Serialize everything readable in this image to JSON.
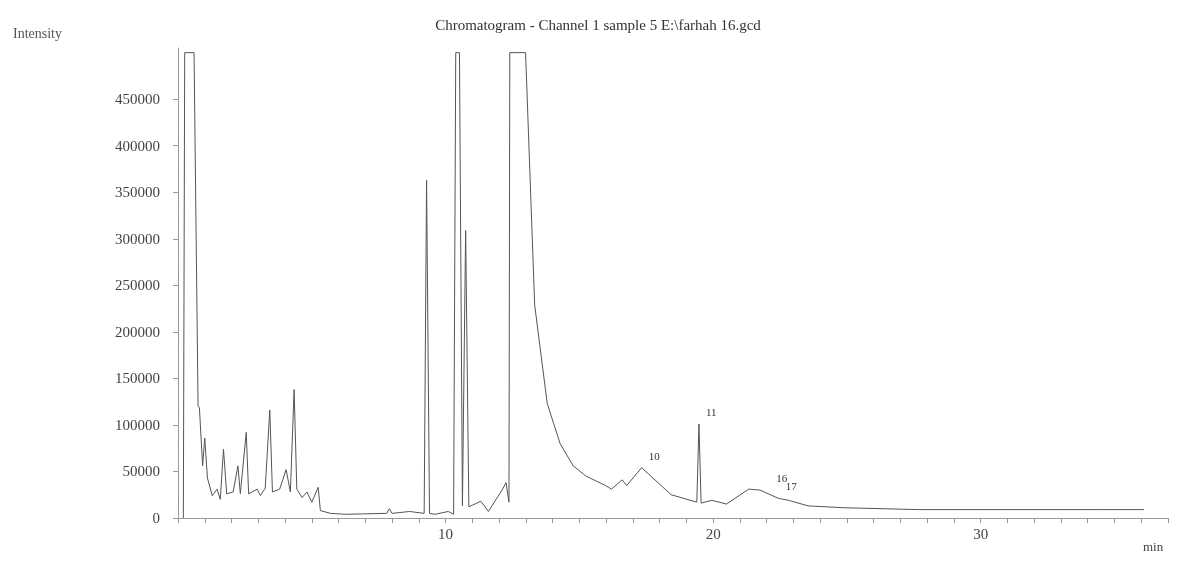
{
  "chart_data": {
    "type": "line",
    "title": "Chromatogram - Channel 1 sample 5 E:\\farhah 16.gcd",
    "xlabel": "min",
    "ylabel": "Intensity",
    "x": [
      0.2,
      0.25,
      0.6,
      0.75,
      0.8,
      0.92,
      1.0,
      1.1,
      1.28,
      1.46,
      1.58,
      1.7,
      1.82,
      2.06,
      2.24,
      2.33,
      2.55,
      2.64,
      2.96,
      3.08,
      3.26,
      3.43,
      3.53,
      3.8,
      4.04,
      4.2,
      4.34,
      4.44,
      4.64,
      4.82,
      5.0,
      5.24,
      5.32,
      5.7,
      6.26,
      7.8,
      7.9,
      8.0,
      8.66,
      9.2,
      9.29,
      9.4,
      9.6,
      10.1,
      10.3,
      10.38,
      10.52,
      10.63,
      10.75,
      10.87,
      11.32,
      11.6,
      12.13,
      12.26,
      12.37,
      12.4,
      12.99,
      13.33,
      13.8,
      14.28,
      14.77,
      15.25,
      15.97,
      16.2,
      16.6,
      16.77,
      17.33,
      18.43,
      19.39,
      19.47,
      19.55,
      19.95,
      20.5,
      21.33,
      21.75,
      22.45,
      22.82,
      23.55,
      24.9,
      27.7,
      34.6,
      36.1
    ],
    "series": [
      {
        "color": "#555555",
        "values": [
          0,
          500000,
          500000,
          120000,
          119000,
          56000,
          86000,
          43000,
          24000,
          31000,
          20000,
          74000,
          26000,
          28000,
          56000,
          26000,
          92000,
          26000,
          31000,
          24000,
          32000,
          116000,
          28000,
          31000,
          52000,
          28000,
          138000,
          31000,
          22000,
          28000,
          17000,
          33000,
          8000,
          5000,
          4000,
          5000,
          10000,
          5000,
          7000,
          5000,
          363000,
          5000,
          4000,
          7000,
          4000,
          500000,
          500000,
          13000,
          309000,
          12000,
          18000,
          7000,
          31000,
          38000,
          17000,
          500000,
          500000,
          229000,
          123000,
          80000,
          56000,
          45000,
          35000,
          31000,
          41000,
          35000,
          54000,
          25000,
          17000,
          101000,
          16000,
          19000,
          15000,
          31000,
          30000,
          21000,
          19000,
          13000,
          11000,
          9000,
          9000,
          9000
        ]
      }
    ],
    "xlim": [
      0,
      37
    ],
    "ylim": [
      0,
      505000
    ],
    "xticks": [
      {
        "value": 0,
        "label": null
      },
      {
        "value": 1,
        "label": null
      },
      {
        "value": 2,
        "label": null
      },
      {
        "value": 3,
        "label": null
      },
      {
        "value": 4,
        "label": null
      },
      {
        "value": 5,
        "label": null
      },
      {
        "value": 6,
        "label": null
      },
      {
        "value": 7,
        "label": null
      },
      {
        "value": 8,
        "label": null
      },
      {
        "value": 9,
        "label": null
      },
      10,
      {
        "value": 11,
        "label": null
      },
      {
        "value": 12,
        "label": null
      },
      {
        "value": 13,
        "label": null
      },
      {
        "value": 14,
        "label": null
      },
      {
        "value": 15,
        "label": null
      },
      {
        "value": 16,
        "label": null
      },
      {
        "value": 17,
        "label": null
      },
      {
        "value": 18,
        "label": null
      },
      {
        "value": 19,
        "label": null
      },
      20,
      {
        "value": 21,
        "label": null
      },
      {
        "value": 22,
        "label": null
      },
      {
        "value": 23,
        "label": null
      },
      {
        "value": 24,
        "label": null
      },
      {
        "value": 25,
        "label": null
      },
      {
        "value": 26,
        "label": null
      },
      {
        "value": 27,
        "label": null
      },
      {
        "value": 28,
        "label": null
      },
      {
        "value": 29,
        "label": null
      },
      30,
      {
        "value": 31,
        "label": null
      },
      {
        "value": 32,
        "label": null
      },
      {
        "value": 33,
        "label": null
      },
      {
        "value": 34,
        "label": null
      },
      {
        "value": 35,
        "label": null
      },
      {
        "value": 36,
        "label": null
      },
      {
        "value": 37,
        "label": null
      }
    ],
    "yticks": [
      0,
      50000,
      100000,
      150000,
      200000,
      250000,
      300000,
      350000,
      400000,
      450000
    ],
    "annotations": [
      {
        "text": "10",
        "x": 17.33,
        "y": 54000
      },
      {
        "text": "11",
        "x": 19.47,
        "y": 101000
      },
      {
        "text": "16",
        "x": 22.1,
        "y": 30000
      },
      {
        "text": "17",
        "x": 22.45,
        "y": 21000
      }
    ],
    "grid": false,
    "marker": "none",
    "line_style": "solid"
  }
}
